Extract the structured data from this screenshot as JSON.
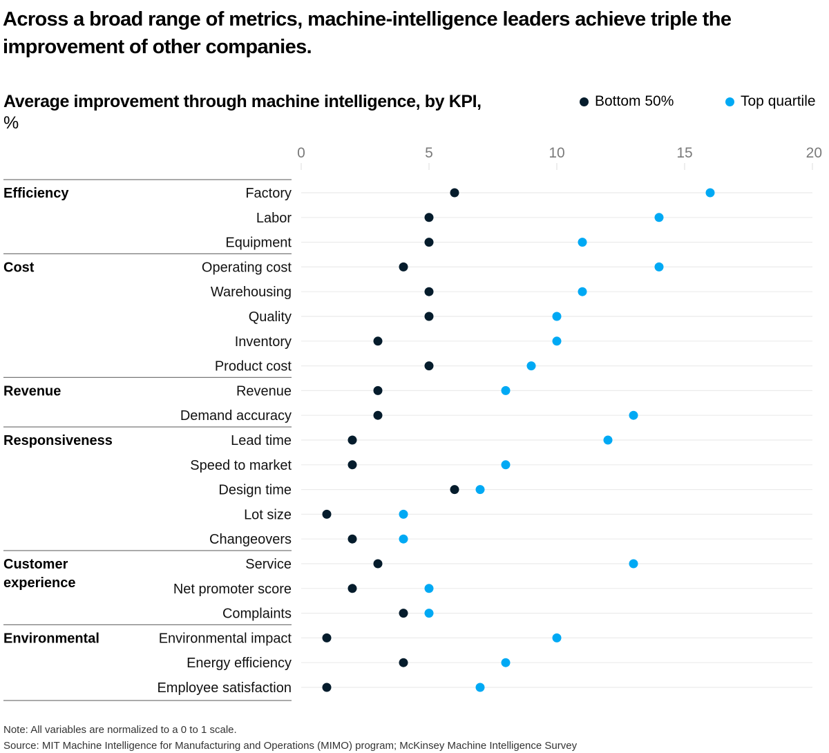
{
  "headline": "Across a broad range of metrics, machine-intelligence leaders achieve triple the improvement of other companies.",
  "subtitle_bold": "Average improvement through machine intelligence, by KPI,",
  "subtitle_unit": " %",
  "footer": {
    "note": "Note: All variables are normalized to a 0 to 1 scale.",
    "source": "Source: MIT Machine Intelligence for Manufacturing and Operations (MIMO) program; McKinsey Machine Intelligence Survey"
  },
  "colors": {
    "bottom": "#051c2c",
    "top": "#00a9f4",
    "gridline": "#ebebeb",
    "divider": "#777777"
  },
  "chart_data": {
    "type": "scatter",
    "subtype": "dot-plot",
    "title": "Average improvement through machine intelligence, by KPI, %",
    "xlabel": "",
    "ylabel": "",
    "xlim": [
      0,
      20
    ],
    "x_ticks": [
      0,
      5,
      10,
      15,
      20
    ],
    "grid": true,
    "legend_position": "top-right",
    "legend": [
      "Bottom 50%",
      "Top quartile"
    ],
    "groups": [
      {
        "name": "Efficiency",
        "kpis": [
          "Factory",
          "Labor",
          "Equipment"
        ]
      },
      {
        "name": "Cost",
        "kpis": [
          "Operating cost",
          "Warehousing",
          "Quality",
          "Inventory",
          "Product cost"
        ]
      },
      {
        "name": "Revenue",
        "kpis": [
          "Revenue",
          "Demand accuracy"
        ]
      },
      {
        "name": "Responsiveness",
        "kpis": [
          "Lead time",
          "Speed to market",
          "Design time",
          "Lot size",
          "Changeovers"
        ]
      },
      {
        "name": "Customer experience",
        "kpis": [
          "Service",
          "Net promoter score",
          "Complaints"
        ]
      },
      {
        "name": "Environmental",
        "kpis": [
          "Environmental impact",
          "Energy efficiency",
          "Employee satisfaction"
        ]
      }
    ],
    "categories": [
      "Factory",
      "Labor",
      "Equipment",
      "Operating cost",
      "Warehousing",
      "Quality",
      "Inventory",
      "Product cost",
      "Revenue",
      "Demand accuracy",
      "Lead time",
      "Speed to market",
      "Design time",
      "Lot size",
      "Changeovers",
      "Service",
      "Net promoter score",
      "Complaints",
      "Environmental impact",
      "Energy efficiency",
      "Employee satisfaction"
    ],
    "series": [
      {
        "name": "Bottom 50%",
        "values": [
          6,
          5,
          5,
          4,
          5,
          5,
          3,
          5,
          3,
          3,
          2,
          2,
          6,
          1,
          2,
          3,
          2,
          4,
          1,
          4,
          1
        ]
      },
      {
        "name": "Top quartile",
        "values": [
          16,
          14,
          11,
          14,
          11,
          10,
          10,
          9,
          8,
          13,
          12,
          8,
          7,
          4,
          4,
          13,
          5,
          5,
          10,
          8,
          7
        ]
      }
    ]
  }
}
